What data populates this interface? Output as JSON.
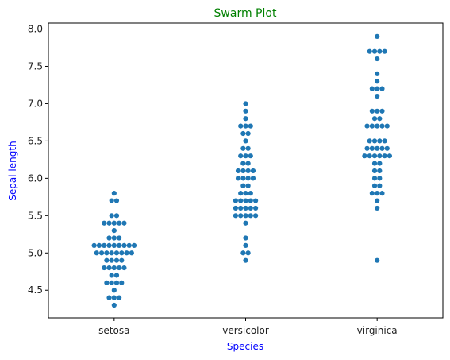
{
  "chart_data": {
    "type": "scatter",
    "subtype": "swarm",
    "title": "Swarm Plot",
    "xlabel": "Species",
    "ylabel": "Sepal length",
    "categories": [
      "setosa",
      "versicolor",
      "virginica"
    ],
    "ylim": [
      4.13,
      8.08
    ],
    "yticks": [
      4.5,
      5.0,
      5.5,
      6.0,
      6.5,
      7.0,
      7.5,
      8.0
    ],
    "ytick_labels": [
      "4.5",
      "5.0",
      "5.5",
      "6.0",
      "6.5",
      "7.0",
      "7.5",
      "8.0"
    ],
    "grid": false,
    "colors": {
      "points": "#1f77b4",
      "title": "#008000",
      "axis_labels": "#0000ff",
      "axes": "#000000"
    },
    "series": [
      {
        "category": "setosa",
        "values": [
          4.3,
          4.4,
          4.4,
          4.4,
          4.5,
          4.6,
          4.6,
          4.6,
          4.6,
          4.7,
          4.7,
          4.8,
          4.8,
          4.8,
          4.8,
          4.8,
          4.9,
          4.9,
          4.9,
          4.9,
          5.0,
          5.0,
          5.0,
          5.0,
          5.0,
          5.0,
          5.0,
          5.0,
          5.1,
          5.1,
          5.1,
          5.1,
          5.1,
          5.1,
          5.1,
          5.1,
          5.1,
          5.2,
          5.2,
          5.2,
          5.3,
          5.4,
          5.4,
          5.4,
          5.4,
          5.4,
          5.5,
          5.5,
          5.7,
          5.7,
          5.8
        ]
      },
      {
        "category": "versicolor",
        "values": [
          4.9,
          5.0,
          5.0,
          5.1,
          5.2,
          5.4,
          5.5,
          5.5,
          5.5,
          5.5,
          5.5,
          5.6,
          5.6,
          5.6,
          5.6,
          5.6,
          5.7,
          5.7,
          5.7,
          5.7,
          5.7,
          5.8,
          5.8,
          5.8,
          5.9,
          5.9,
          6.0,
          6.0,
          6.0,
          6.0,
          6.1,
          6.1,
          6.1,
          6.1,
          6.2,
          6.2,
          6.3,
          6.3,
          6.3,
          6.4,
          6.4,
          6.5,
          6.6,
          6.6,
          6.7,
          6.7,
          6.7,
          6.8,
          6.9,
          7.0
        ]
      },
      {
        "category": "virginica",
        "values": [
          4.9,
          5.6,
          5.7,
          5.8,
          5.8,
          5.8,
          5.9,
          5.9,
          6.0,
          6.0,
          6.1,
          6.1,
          6.2,
          6.2,
          6.3,
          6.3,
          6.3,
          6.3,
          6.3,
          6.3,
          6.4,
          6.4,
          6.4,
          6.4,
          6.4,
          6.5,
          6.5,
          6.5,
          6.5,
          6.7,
          6.7,
          6.7,
          6.7,
          6.7,
          6.8,
          6.8,
          6.9,
          6.9,
          6.9,
          7.1,
          7.2,
          7.2,
          7.2,
          7.3,
          7.4,
          7.6,
          7.7,
          7.7,
          7.7,
          7.7,
          7.9
        ]
      }
    ]
  }
}
